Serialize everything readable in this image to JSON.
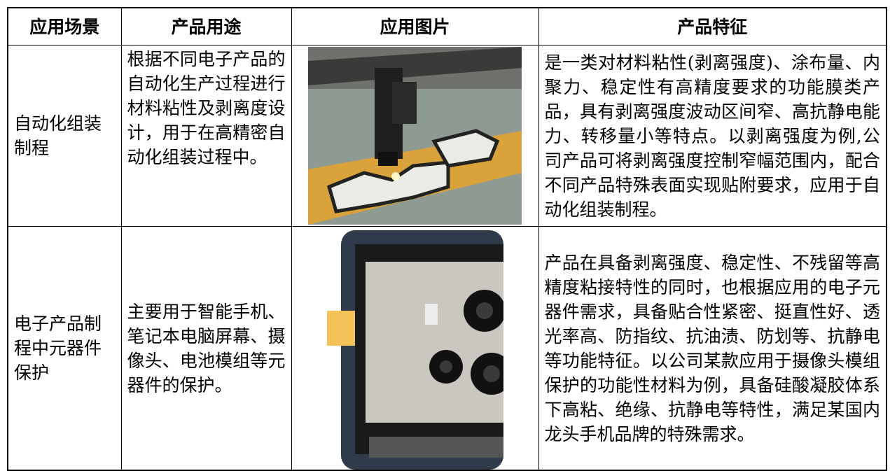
{
  "table": {
    "header": [
      "应用场景",
      "产品用途",
      "应用图片",
      "产品特征"
    ],
    "rows": [
      {
        "scene": "自动化组装制程",
        "use": "根据不同电子产品的自动化生产过程进行材料粘性及剥离度设计，用于在高精密自动化组装过程中。",
        "feature": "是一类对材料粘性(剥离强度)、涂布量、内聚力、稳定性有高精度要求的功能膜类产品，具有剥离强度波动区间窄、高抗静电能力、转移量小等特点。以剥离强度为例,公司产品可将剥离强度控制窄幅范围内，配合不同产品特殊表面实现贴附要求，应用于自动化组装制程。"
      },
      {
        "scene": "电子产品制程中元器件保护",
        "use": "主要用于智能手机、笔记本电脑屏幕、摄像头、电池模组等元器件的保护。",
        "feature": "产品在具备剥离强度、稳定性、不残留等高精度粘接特性的同时，也根据应用的电子元器件需求，具备贴合性紧密、挺直性好、透光率高、防指纹、抗油渍、防划等、抗静电等功能特征。以公司某款应用于摄像头模组保护的功能性材料为例，具备硅酸凝胶体系下高粘、绝缘、抗静电等特性，满足某国内龙头手机品牌的特殊需求。"
      }
    ]
  }
}
